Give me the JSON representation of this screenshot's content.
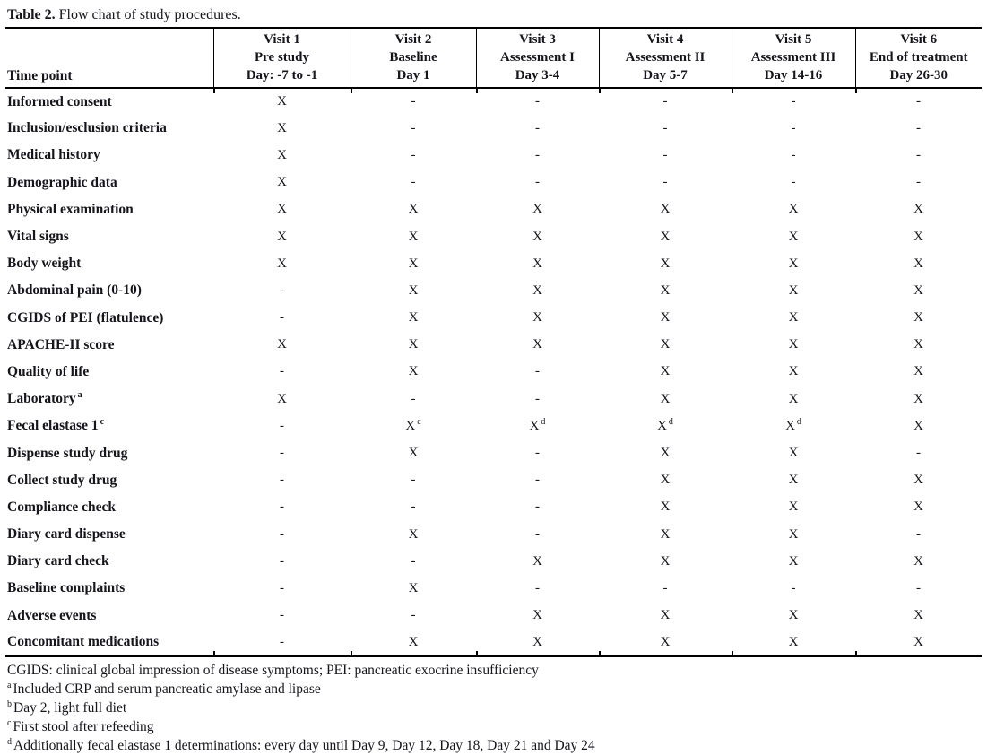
{
  "title": {
    "bold": "Table 2.",
    "rest": " Flow chart of study procedures."
  },
  "table": {
    "corner_header": "Time point",
    "columns": [
      {
        "visit": "Visit 1",
        "phase": "Pre study",
        "days": "Day: -7 to -1"
      },
      {
        "visit": "Visit 2",
        "phase": "Baseline",
        "days": "Day 1"
      },
      {
        "visit": "Visit 3",
        "phase": "Assessment I",
        "days": "Day 3-4"
      },
      {
        "visit": "Visit 4",
        "phase": "Assessment II",
        "days": "Day 5-7"
      },
      {
        "visit": "Visit 5",
        "phase": "Assessment III",
        "days": "Day 14-16"
      },
      {
        "visit": "Visit 6",
        "phase": "End of treatment",
        "days": "Day 26-30"
      }
    ],
    "rows": [
      {
        "label": "Informed consent",
        "values": [
          "X",
          "-",
          "-",
          "-",
          "-",
          "-"
        ]
      },
      {
        "label": "Inclusion/esclusion criteria",
        "values": [
          "X",
          "-",
          "-",
          "-",
          "-",
          "-"
        ]
      },
      {
        "label": "Medical history",
        "values": [
          "X",
          "-",
          "-",
          "-",
          "-",
          "-"
        ]
      },
      {
        "label": "Demographic data",
        "values": [
          "X",
          "-",
          "-",
          "-",
          "-",
          "-"
        ]
      },
      {
        "label": "Physical examination",
        "values": [
          "X",
          "X",
          "X",
          "X",
          "X",
          "X"
        ]
      },
      {
        "label": "Vital signs",
        "values": [
          "X",
          "X",
          "X",
          "X",
          "X",
          "X"
        ]
      },
      {
        "label": "Body weight",
        "values": [
          "X",
          "X",
          "X",
          "X",
          "X",
          "X"
        ]
      },
      {
        "label": "Abdominal pain (0-10)",
        "values": [
          "-",
          "X",
          "X",
          "X",
          "X",
          "X"
        ]
      },
      {
        "label": "CGIDS of PEI (flatulence)",
        "values": [
          "-",
          "X",
          "X",
          "X",
          "X",
          "X"
        ]
      },
      {
        "label": "APACHE-II score",
        "values": [
          "X",
          "X",
          "X",
          "X",
          "X",
          "X"
        ]
      },
      {
        "label": "Quality of life",
        "values": [
          "-",
          "X",
          "-",
          "X",
          "X",
          "X"
        ]
      },
      {
        "label": "Laboratory",
        "label_sup": "a",
        "values": [
          "X",
          "-",
          "-",
          "X",
          "X",
          "X"
        ]
      },
      {
        "label": "Fecal elastase 1",
        "label_sup": "c",
        "values": [
          "-",
          "X^c",
          "X^d",
          "X^d",
          "X^d",
          "X"
        ]
      },
      {
        "label": "Dispense study drug",
        "values": [
          "-",
          "X",
          "-",
          "X",
          "X",
          "-"
        ]
      },
      {
        "label": "Collect study drug",
        "values": [
          "-",
          "-",
          "-",
          "X",
          "X",
          "X"
        ]
      },
      {
        "label": "Compliance check",
        "values": [
          "-",
          "-",
          "-",
          "X",
          "X",
          "X"
        ]
      },
      {
        "label": "Diary card dispense",
        "values": [
          "-",
          "X",
          "-",
          "X",
          "X",
          "-"
        ]
      },
      {
        "label": "Diary card check",
        "values": [
          "-",
          "-",
          "X",
          "X",
          "X",
          "X"
        ]
      },
      {
        "label": "Baseline complaints",
        "values": [
          "-",
          "X",
          "-",
          "-",
          "-",
          "-"
        ]
      },
      {
        "label": "Adverse events",
        "values": [
          "-",
          "-",
          "X",
          "X",
          "X",
          "X"
        ]
      },
      {
        "label": "Concomitant medications",
        "values": [
          "-",
          "X",
          "X",
          "X",
          "X",
          "X"
        ]
      }
    ]
  },
  "footnotes": [
    {
      "sup": "",
      "text": "CGIDS: clinical global impression of disease symptoms; PEI: pancreatic exocrine insufficiency"
    },
    {
      "sup": "a",
      "text": "Included CRP and serum pancreatic amylase and lipase"
    },
    {
      "sup": "b",
      "text": "Day 2, light full diet"
    },
    {
      "sup": "c",
      "text": "First stool after refeeding"
    },
    {
      "sup": "d",
      "text": "Additionally fecal elastase 1 determinations: every day until Day 9, Day 12, Day 18, Day 21 and Day 24"
    }
  ]
}
